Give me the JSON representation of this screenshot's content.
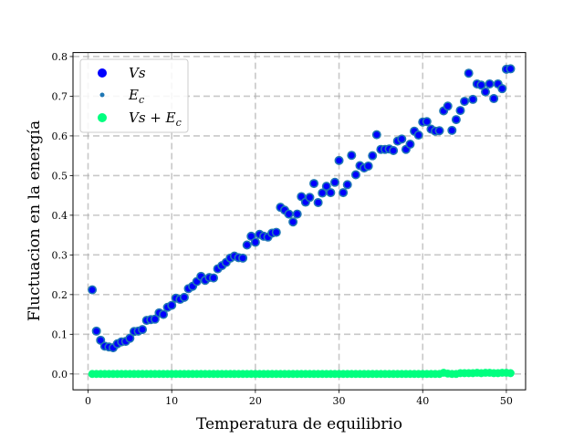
{
  "chart_data": {
    "type": "scatter",
    "title": "",
    "xlabel": "Temperatura de equilibrio",
    "ylabel": "Fluctuacion en la energía",
    "xlim": [
      -1.8,
      52.3
    ],
    "ylim": [
      -0.04,
      0.81
    ],
    "xticks": [
      0,
      10,
      20,
      30,
      40,
      50
    ],
    "yticks": [
      0.0,
      0.1,
      0.2,
      0.3,
      0.4,
      0.5,
      0.6,
      0.7,
      0.8
    ],
    "grid": true,
    "legend_placement": "top-left",
    "series": [
      {
        "name": "Vs",
        "marker": "large-circle",
        "color": "#0000ff",
        "edge_color": "#1f77b4",
        "points": [
          [
            0.5,
            0.212
          ],
          [
            1.0,
            0.108
          ],
          [
            1.5,
            0.085
          ],
          [
            2.0,
            0.07
          ],
          [
            2.5,
            0.068
          ],
          [
            3.0,
            0.066
          ],
          [
            3.5,
            0.076
          ],
          [
            4.0,
            0.081
          ],
          [
            4.5,
            0.082
          ],
          [
            5.0,
            0.09
          ],
          [
            5.5,
            0.107
          ],
          [
            6.0,
            0.108
          ],
          [
            6.5,
            0.112
          ],
          [
            7.0,
            0.135
          ],
          [
            7.5,
            0.137
          ],
          [
            8.0,
            0.138
          ],
          [
            8.5,
            0.154
          ],
          [
            9.0,
            0.15
          ],
          [
            9.5,
            0.168
          ],
          [
            10.0,
            0.173
          ],
          [
            10.5,
            0.191
          ],
          [
            11.0,
            0.188
          ],
          [
            11.5,
            0.193
          ],
          [
            12.0,
            0.215
          ],
          [
            12.5,
            0.221
          ],
          [
            13.0,
            0.233
          ],
          [
            13.5,
            0.246
          ],
          [
            14.0,
            0.236
          ],
          [
            14.5,
            0.243
          ],
          [
            15.0,
            0.242
          ],
          [
            15.5,
            0.265
          ],
          [
            16.0,
            0.273
          ],
          [
            16.5,
            0.281
          ],
          [
            17.0,
            0.292
          ],
          [
            17.5,
            0.297
          ],
          [
            18.0,
            0.293
          ],
          [
            18.5,
            0.292
          ],
          [
            19.0,
            0.325
          ],
          [
            19.5,
            0.347
          ],
          [
            20.0,
            0.332
          ],
          [
            20.5,
            0.352
          ],
          [
            21.0,
            0.347
          ],
          [
            21.5,
            0.345
          ],
          [
            22.0,
            0.355
          ],
          [
            22.5,
            0.357
          ],
          [
            23.0,
            0.42
          ],
          [
            23.5,
            0.413
          ],
          [
            24.0,
            0.403
          ],
          [
            24.5,
            0.383
          ],
          [
            25.0,
            0.403
          ],
          [
            25.5,
            0.447
          ],
          [
            26.0,
            0.433
          ],
          [
            26.5,
            0.445
          ],
          [
            27.0,
            0.48
          ],
          [
            27.5,
            0.432
          ],
          [
            28.0,
            0.456
          ],
          [
            28.5,
            0.473
          ],
          [
            29.0,
            0.457
          ],
          [
            29.5,
            0.483
          ],
          [
            30.0,
            0.538
          ],
          [
            30.5,
            0.457
          ],
          [
            31.0,
            0.477
          ],
          [
            31.5,
            0.551
          ],
          [
            32.0,
            0.502
          ],
          [
            32.5,
            0.525
          ],
          [
            33.0,
            0.519
          ],
          [
            33.5,
            0.524
          ],
          [
            34.0,
            0.55
          ],
          [
            34.5,
            0.603
          ],
          [
            35.0,
            0.566
          ],
          [
            35.5,
            0.566
          ],
          [
            36.0,
            0.567
          ],
          [
            36.5,
            0.563
          ],
          [
            37.0,
            0.587
          ],
          [
            37.5,
            0.592
          ],
          [
            38.0,
            0.566
          ],
          [
            38.5,
            0.579
          ],
          [
            39.0,
            0.612
          ],
          [
            39.5,
            0.602
          ],
          [
            40.0,
            0.635
          ],
          [
            40.5,
            0.636
          ],
          [
            41.0,
            0.617
          ],
          [
            41.5,
            0.612
          ],
          [
            42.0,
            0.613
          ],
          [
            42.5,
            0.663
          ],
          [
            43.0,
            0.675
          ],
          [
            43.5,
            0.614
          ],
          [
            44.0,
            0.641
          ],
          [
            44.5,
            0.664
          ],
          [
            45.0,
            0.687
          ],
          [
            45.5,
            0.758
          ],
          [
            46.0,
            0.692
          ],
          [
            46.5,
            0.731
          ],
          [
            47.0,
            0.728
          ],
          [
            47.5,
            0.711
          ],
          [
            48.0,
            0.731
          ],
          [
            48.5,
            0.694
          ],
          [
            49.0,
            0.731
          ],
          [
            49.5,
            0.719
          ],
          [
            50.0,
            0.768
          ],
          [
            50.5,
            0.769
          ]
        ]
      },
      {
        "name": "E_c",
        "marker": "small-dot",
        "color": "#1f77b4",
        "points": [
          [
            0.5,
            0.0
          ],
          [
            1.0,
            0.0
          ],
          [
            1.5,
            0.0
          ],
          [
            2.0,
            0.0
          ],
          [
            2.5,
            0.0
          ],
          [
            3.0,
            0.0
          ],
          [
            3.5,
            0.0
          ],
          [
            4.0,
            0.0
          ],
          [
            4.5,
            0.0
          ],
          [
            5.0,
            0.0
          ],
          [
            5.5,
            0.0
          ],
          [
            6.0,
            0.0
          ],
          [
            6.5,
            0.0
          ],
          [
            7.0,
            0.0
          ],
          [
            7.5,
            0.0
          ],
          [
            8.0,
            0.0
          ],
          [
            8.5,
            0.0
          ],
          [
            9.0,
            0.0
          ],
          [
            9.5,
            0.0
          ],
          [
            10.0,
            0.0
          ],
          [
            10.5,
            0.0
          ],
          [
            11.0,
            0.0
          ],
          [
            11.5,
            0.0
          ],
          [
            12.0,
            0.0
          ],
          [
            12.5,
            0.0
          ],
          [
            13.0,
            0.0
          ],
          [
            13.5,
            0.0
          ],
          [
            14.0,
            0.0
          ],
          [
            14.5,
            0.0
          ],
          [
            15.0,
            0.0
          ],
          [
            15.5,
            0.0
          ],
          [
            16.0,
            0.0
          ],
          [
            16.5,
            0.0
          ],
          [
            17.0,
            0.0
          ],
          [
            17.5,
            0.0
          ],
          [
            18.0,
            0.0
          ],
          [
            18.5,
            0.0
          ],
          [
            19.0,
            0.0
          ],
          [
            19.5,
            0.0
          ],
          [
            20.0,
            0.0
          ],
          [
            20.5,
            0.0
          ],
          [
            21.0,
            0.0
          ],
          [
            21.5,
            0.0
          ],
          [
            22.0,
            0.0
          ],
          [
            22.5,
            0.0
          ],
          [
            23.0,
            0.0
          ],
          [
            23.5,
            0.0
          ],
          [
            24.0,
            0.0
          ],
          [
            24.5,
            0.0
          ],
          [
            25.0,
            0.0
          ],
          [
            25.5,
            0.0
          ],
          [
            26.0,
            0.0
          ],
          [
            26.5,
            0.0
          ],
          [
            27.0,
            0.0
          ],
          [
            27.5,
            0.0
          ],
          [
            28.0,
            0.0
          ],
          [
            28.5,
            0.0
          ],
          [
            29.0,
            0.0
          ],
          [
            29.5,
            0.0
          ],
          [
            30.0,
            0.0
          ],
          [
            30.5,
            0.0
          ],
          [
            31.0,
            0.0
          ],
          [
            31.5,
            0.0
          ],
          [
            32.0,
            0.0
          ],
          [
            32.5,
            0.0
          ],
          [
            33.0,
            0.0
          ],
          [
            33.5,
            0.0
          ],
          [
            34.0,
            0.0
          ],
          [
            34.5,
            0.0
          ],
          [
            35.0,
            0.0
          ],
          [
            35.5,
            0.0
          ],
          [
            36.0,
            0.0
          ],
          [
            36.5,
            0.0
          ],
          [
            37.0,
            0.0
          ],
          [
            37.5,
            0.0
          ],
          [
            38.0,
            0.0
          ],
          [
            38.5,
            0.0
          ],
          [
            39.0,
            0.0
          ],
          [
            39.5,
            0.0
          ],
          [
            40.0,
            0.0
          ],
          [
            40.5,
            0.0
          ],
          [
            41.0,
            0.0
          ],
          [
            41.5,
            0.0
          ],
          [
            42.0,
            0.0
          ],
          [
            42.5,
            0.003
          ],
          [
            43.0,
            0.001
          ],
          [
            43.5,
            0.0
          ],
          [
            44.0,
            0.0
          ],
          [
            44.5,
            0.002
          ],
          [
            45.0,
            0.002
          ],
          [
            45.5,
            0.002
          ],
          [
            46.0,
            0.002
          ],
          [
            46.5,
            0.003
          ],
          [
            47.0,
            0.002
          ],
          [
            47.5,
            0.003
          ],
          [
            48.0,
            0.003
          ],
          [
            48.5,
            0.002
          ],
          [
            49.0,
            0.002
          ],
          [
            49.5,
            0.003
          ],
          [
            50.0,
            0.003
          ],
          [
            50.5,
            0.002
          ]
        ]
      },
      {
        "name": "Vs + E_c",
        "marker": "large-circle",
        "color": "#00ff7f",
        "points": [
          [
            0.5,
            0.0
          ],
          [
            1.0,
            0.0
          ],
          [
            1.5,
            0.0
          ],
          [
            2.0,
            0.0
          ],
          [
            2.5,
            0.0
          ],
          [
            3.0,
            0.0
          ],
          [
            3.5,
            0.0
          ],
          [
            4.0,
            0.0
          ],
          [
            4.5,
            0.0
          ],
          [
            5.0,
            0.0
          ],
          [
            5.5,
            0.0
          ],
          [
            6.0,
            0.0
          ],
          [
            6.5,
            0.0
          ],
          [
            7.0,
            0.0
          ],
          [
            7.5,
            0.0
          ],
          [
            8.0,
            0.0
          ],
          [
            8.5,
            0.0
          ],
          [
            9.0,
            0.0
          ],
          [
            9.5,
            0.0
          ],
          [
            10.0,
            0.0
          ],
          [
            10.5,
            0.0
          ],
          [
            11.0,
            0.0
          ],
          [
            11.5,
            0.0
          ],
          [
            12.0,
            0.0
          ],
          [
            12.5,
            0.0
          ],
          [
            13.0,
            0.0
          ],
          [
            13.5,
            0.0
          ],
          [
            14.0,
            0.0
          ],
          [
            14.5,
            0.0
          ],
          [
            15.0,
            0.0
          ],
          [
            15.5,
            0.0
          ],
          [
            16.0,
            0.0
          ],
          [
            16.5,
            0.0
          ],
          [
            17.0,
            0.0
          ],
          [
            17.5,
            0.0
          ],
          [
            18.0,
            0.0
          ],
          [
            18.5,
            0.0
          ],
          [
            19.0,
            0.0
          ],
          [
            19.5,
            0.0
          ],
          [
            20.0,
            0.0
          ],
          [
            20.5,
            0.0
          ],
          [
            21.0,
            0.0
          ],
          [
            21.5,
            0.0
          ],
          [
            22.0,
            0.0
          ],
          [
            22.5,
            0.0
          ],
          [
            23.0,
            0.0
          ],
          [
            23.5,
            0.0
          ],
          [
            24.0,
            0.0
          ],
          [
            24.5,
            0.0
          ],
          [
            25.0,
            0.0
          ],
          [
            25.5,
            0.0
          ],
          [
            26.0,
            0.0
          ],
          [
            26.5,
            0.0
          ],
          [
            27.0,
            0.0
          ],
          [
            27.5,
            0.0
          ],
          [
            28.0,
            0.0
          ],
          [
            28.5,
            0.0
          ],
          [
            29.0,
            0.0
          ],
          [
            29.5,
            0.0
          ],
          [
            30.0,
            0.0
          ],
          [
            30.5,
            0.0
          ],
          [
            31.0,
            0.0
          ],
          [
            31.5,
            0.0
          ],
          [
            32.0,
            0.0
          ],
          [
            32.5,
            0.0
          ],
          [
            33.0,
            0.0
          ],
          [
            33.5,
            0.0
          ],
          [
            34.0,
            0.0
          ],
          [
            34.5,
            0.0
          ],
          [
            35.0,
            0.0
          ],
          [
            35.5,
            0.0
          ],
          [
            36.0,
            0.0
          ],
          [
            36.5,
            0.0
          ],
          [
            37.0,
            0.0
          ],
          [
            37.5,
            0.0
          ],
          [
            38.0,
            0.0
          ],
          [
            38.5,
            0.0
          ],
          [
            39.0,
            0.0
          ],
          [
            39.5,
            0.0
          ],
          [
            40.0,
            0.0
          ],
          [
            40.5,
            0.0
          ],
          [
            41.0,
            0.0
          ],
          [
            41.5,
            0.0
          ],
          [
            42.0,
            0.0
          ],
          [
            42.5,
            0.003
          ],
          [
            43.0,
            0.001
          ],
          [
            43.5,
            0.0
          ],
          [
            44.0,
            0.0
          ],
          [
            44.5,
            0.002
          ],
          [
            45.0,
            0.002
          ],
          [
            45.5,
            0.002
          ],
          [
            46.0,
            0.002
          ],
          [
            46.5,
            0.003
          ],
          [
            47.0,
            0.002
          ],
          [
            47.5,
            0.003
          ],
          [
            48.0,
            0.003
          ],
          [
            48.5,
            0.002
          ],
          [
            49.0,
            0.002
          ],
          [
            49.5,
            0.003
          ],
          [
            50.0,
            0.003
          ],
          [
            50.5,
            0.002
          ]
        ]
      }
    ],
    "legend": [
      {
        "series": 0,
        "label": "Vs"
      },
      {
        "series": 1,
        "label": "E",
        "sub": "c"
      },
      {
        "series": 2,
        "label": "Vs + E",
        "sub": "c"
      }
    ]
  }
}
